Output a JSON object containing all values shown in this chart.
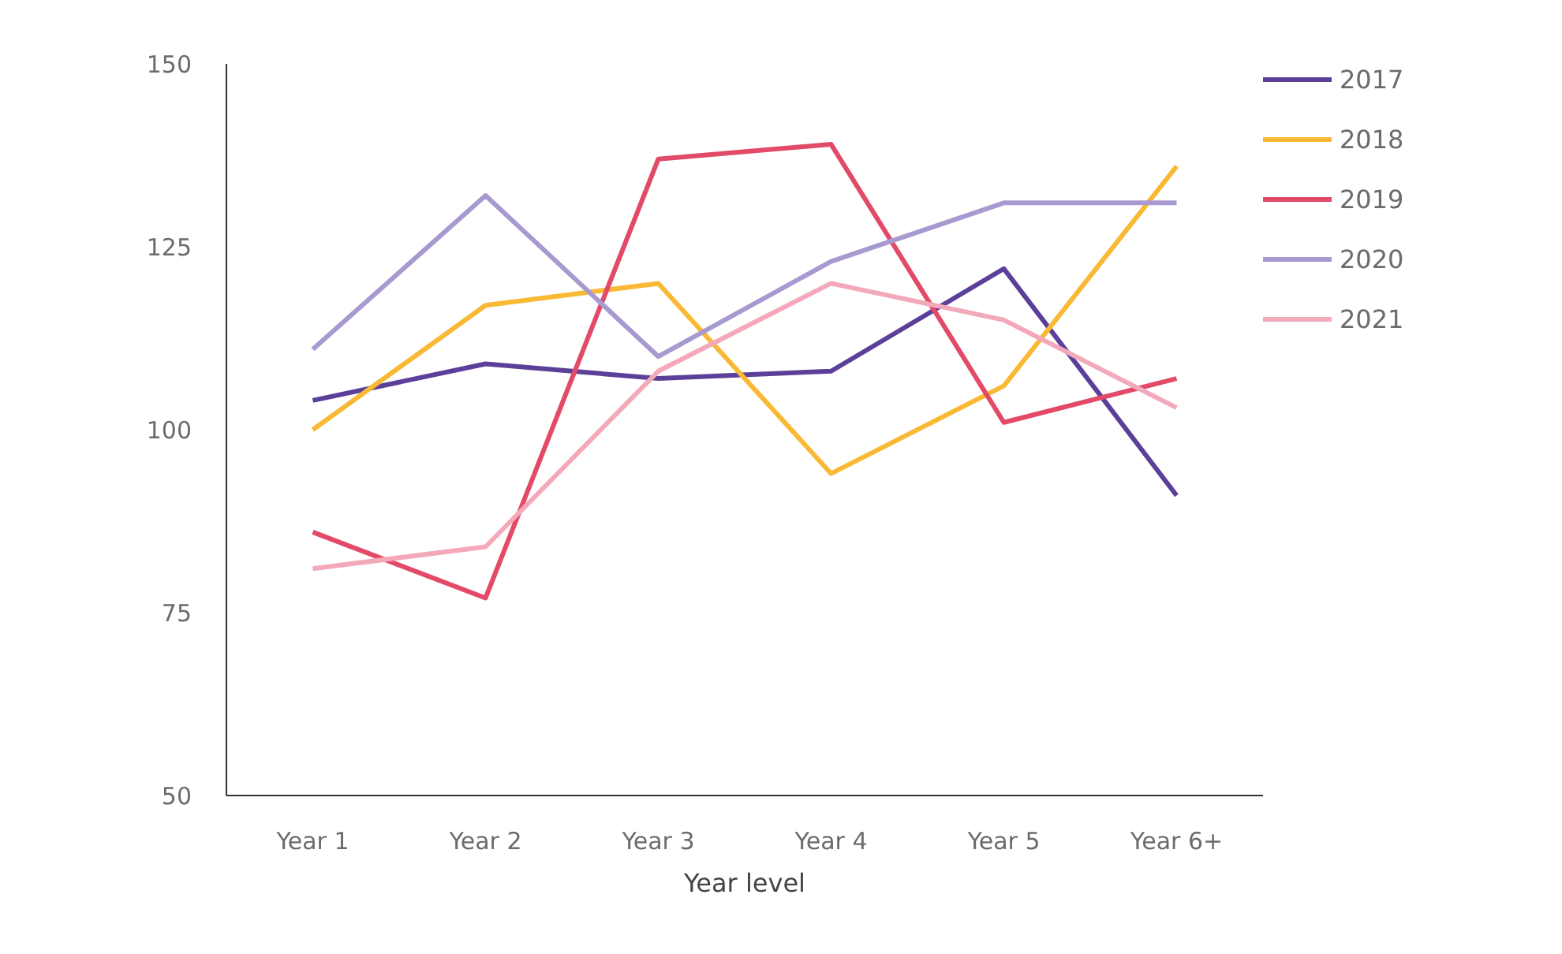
{
  "chart_data": {
    "type": "line",
    "xlabel": "Year level",
    "categories": [
      "Year 1",
      "Year 2",
      "Year 3",
      "Year 4",
      "Year 5",
      "Year 6+"
    ],
    "ylim": [
      50,
      150
    ],
    "yticks": [
      50,
      75,
      100,
      125,
      150
    ],
    "grid": false,
    "legend": "right",
    "marker": "none",
    "line_style": "solid",
    "series": [
      {
        "name": "2017",
        "color": "#5b3f99",
        "values": [
          104,
          109,
          107,
          108,
          122,
          91
        ]
      },
      {
        "name": "2018",
        "color": "#f9b935",
        "values": [
          100,
          117,
          120,
          94,
          106,
          136
        ]
      },
      {
        "name": "2019",
        "color": "#e24a68",
        "values": [
          86,
          77,
          137,
          139,
          101,
          107
        ]
      },
      {
        "name": "2020",
        "color": "#a89ad0",
        "values": [
          111,
          132,
          110,
          123,
          131,
          131
        ]
      },
      {
        "name": "2021",
        "color": "#f4a9bb",
        "values": [
          81,
          84,
          108,
          120,
          115,
          103
        ]
      }
    ]
  }
}
